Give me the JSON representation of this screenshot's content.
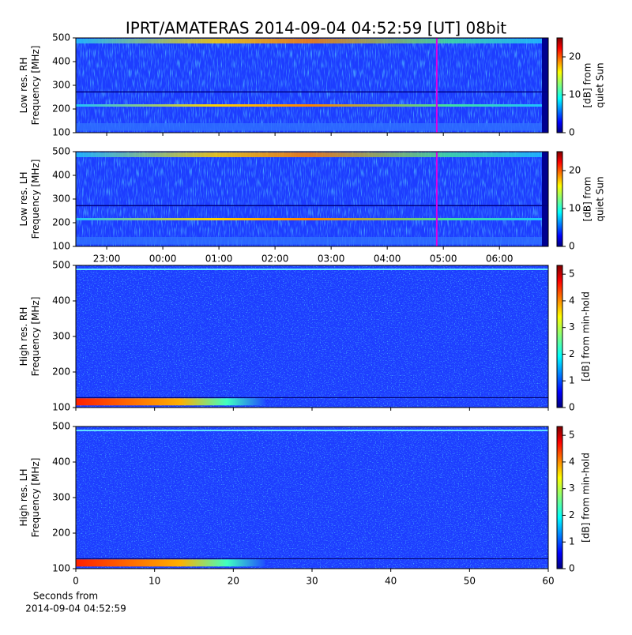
{
  "title": "IPRT/AMATERAS 2014-09-04 04:52:59 [UT]   08bit",
  "chart_data": [
    {
      "type": "heatmap",
      "ylabel": [
        "Low res. RH",
        "Frequency [MHz]"
      ],
      "ylim": [
        100,
        500
      ],
      "yticks": [
        100,
        200,
        300,
        400,
        500
      ],
      "xlim": [
        22.45,
        30.87
      ],
      "xticks": [
        {
          "value": 23,
          "label": "23:00"
        },
        {
          "value": 24,
          "label": "00:00"
        },
        {
          "value": 25,
          "label": "01:00"
        },
        {
          "value": 26,
          "label": "02:00"
        },
        {
          "value": 27,
          "label": "03:00"
        },
        {
          "value": 28,
          "label": "04:00"
        },
        {
          "value": 29,
          "label": "05:00"
        },
        {
          "value": 30,
          "label": "06:00"
        }
      ],
      "marker_x": 28.883,
      "marker_color": "#e000e0",
      "colormap": "jet",
      "colorbar_label": [
        "[dB] from",
        "quiet Sun"
      ],
      "clim": [
        0,
        25
      ],
      "cticks": [
        0,
        10,
        20
      ]
    },
    {
      "type": "heatmap",
      "ylabel": [
        "Low res. LH",
        "Frequency [MHz]"
      ],
      "ylim": [
        100,
        500
      ],
      "yticks": [
        100,
        200,
        300,
        400,
        500
      ],
      "xlim": [
        22.45,
        30.87
      ],
      "xticks": [
        {
          "value": 23,
          "label": "23:00"
        },
        {
          "value": 24,
          "label": "00:00"
        },
        {
          "value": 25,
          "label": "01:00"
        },
        {
          "value": 26,
          "label": "02:00"
        },
        {
          "value": 27,
          "label": "03:00"
        },
        {
          "value": 28,
          "label": "04:00"
        },
        {
          "value": 29,
          "label": "05:00"
        },
        {
          "value": 30,
          "label": "06:00"
        }
      ],
      "marker_x": 28.883,
      "marker_color": "#e000e0",
      "colormap": "jet",
      "colorbar_label": [
        "[dB] from",
        "quiet Sun"
      ],
      "clim": [
        0,
        25
      ],
      "cticks": [
        0,
        10,
        20
      ]
    },
    {
      "type": "heatmap",
      "ylabel": [
        "High res. RH",
        "Frequency [MHz]"
      ],
      "ylim": [
        100,
        500
      ],
      "yticks": [
        100,
        200,
        300,
        400,
        500
      ],
      "xlim": [
        0,
        60
      ],
      "xticks": [
        0,
        10,
        20,
        30,
        40,
        50,
        60
      ],
      "colormap": "jet",
      "colorbar_label": [
        "[dB] from min-hold"
      ],
      "clim": [
        0,
        5.33
      ],
      "cticks": [
        0,
        1,
        2,
        3,
        4,
        5
      ]
    },
    {
      "type": "heatmap",
      "ylabel": [
        "High res. LH",
        "Frequency [MHz]"
      ],
      "ylim": [
        100,
        500
      ],
      "yticks": [
        100,
        200,
        300,
        400,
        500
      ],
      "xlim": [
        0,
        60
      ],
      "xticks": [
        0,
        10,
        20,
        30,
        40,
        50,
        60
      ],
      "colormap": "jet",
      "colorbar_label": [
        "[dB] from min-hold"
      ],
      "clim": [
        0,
        5.33
      ],
      "cticks": [
        0,
        1,
        2,
        3,
        4,
        5
      ],
      "xlabel": [
        "Seconds from",
        "2014-09-04 04:52:59"
      ]
    }
  ]
}
